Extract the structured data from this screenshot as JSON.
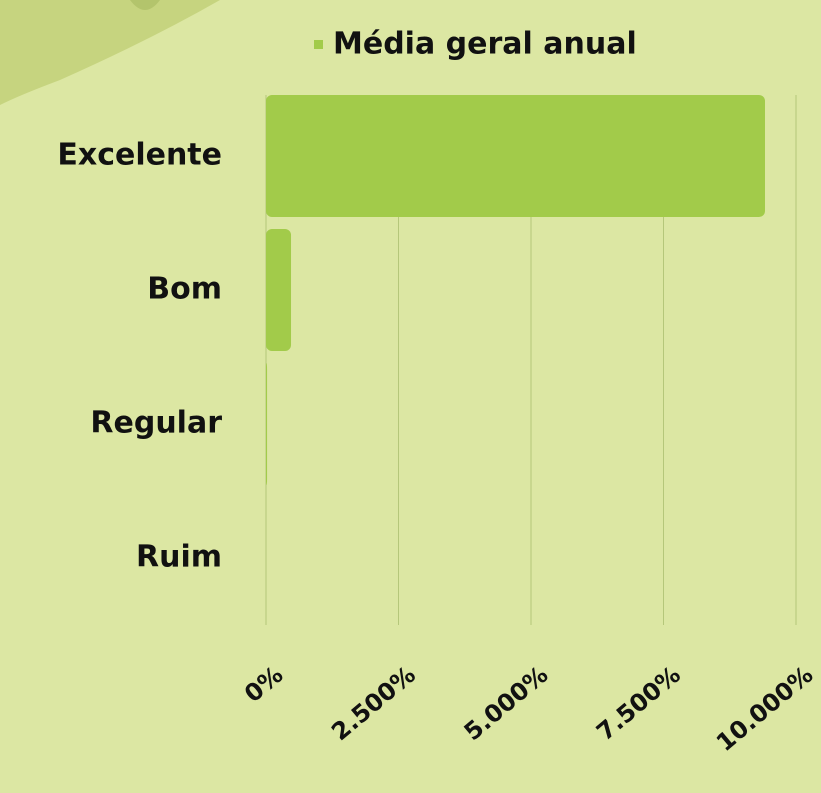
{
  "chart_data": {
    "type": "bar",
    "orientation": "horizontal",
    "categories": [
      "Excelente",
      "Bom",
      "Regular",
      "Ruim"
    ],
    "series": [
      {
        "name": "Média geral anual",
        "color": "#a2cb4a",
        "values": [
          9415,
          472,
          20,
          0
        ]
      }
    ],
    "xlim": [
      0,
      10000
    ],
    "xticks": [
      {
        "value": 0,
        "label": "0%"
      },
      {
        "value": 2500,
        "label": "2.500%"
      },
      {
        "value": 5000,
        "label": "5.000%"
      },
      {
        "value": 7500,
        "label": "7.500%"
      },
      {
        "value": 10000,
        "label": "10.000%"
      }
    ],
    "grid": true,
    "legend": "top"
  }
}
